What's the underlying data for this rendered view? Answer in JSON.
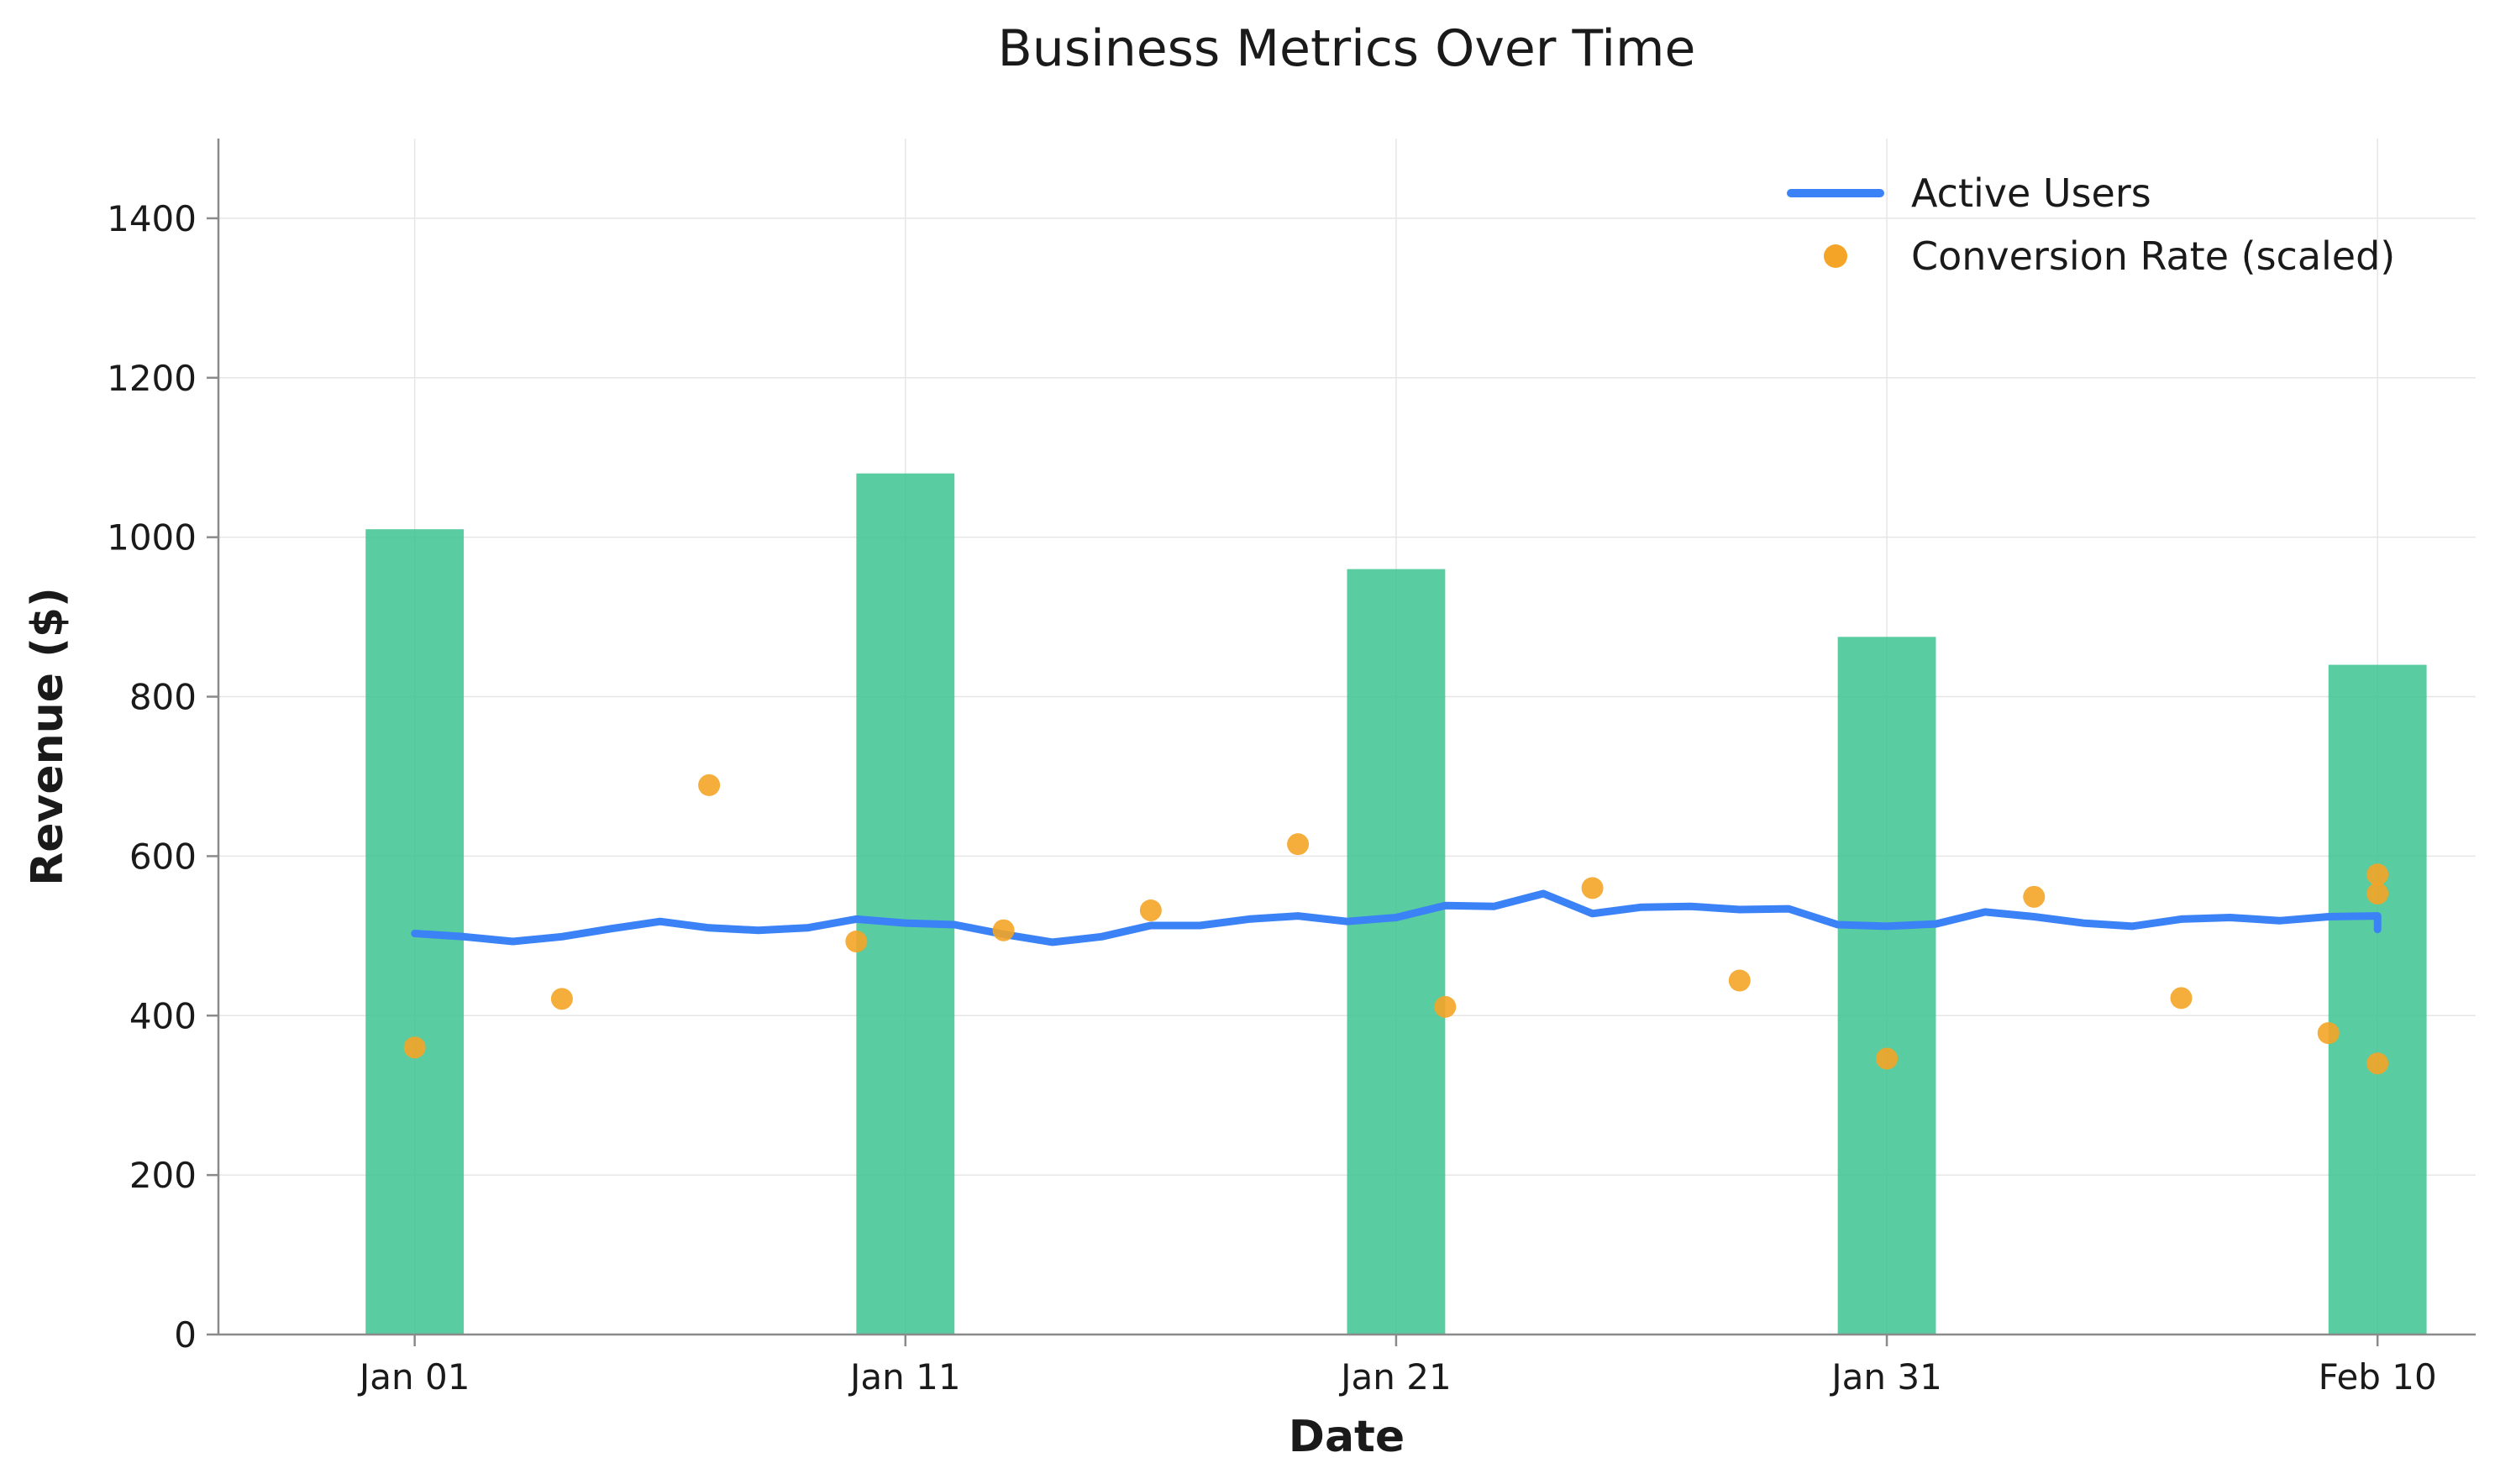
{
  "chart_data": {
    "type": "bar",
    "title": "Business Metrics Over Time",
    "xlabel": "Date",
    "ylabel": "Revenue ($)",
    "ylim": [
      0,
      1500
    ],
    "xlim": [
      "2024-12-28",
      "2025-02-12"
    ],
    "yticks": [
      0,
      200,
      400,
      600,
      800,
      1000,
      1200,
      1400
    ],
    "xticks": [
      {
        "date": "2025-01-01",
        "label": "Jan 01"
      },
      {
        "date": "2025-01-11",
        "label": "Jan 11"
      },
      {
        "date": "2025-01-21",
        "label": "Jan 21"
      },
      {
        "date": "2025-01-31",
        "label": "Jan 31"
      },
      {
        "date": "2025-02-10",
        "label": "Feb 10"
      }
    ],
    "grid": true,
    "legend_position": "upper right",
    "colors": {
      "bars": "#3cc391",
      "line": "#3b82f6",
      "scatter": "#f4a426"
    },
    "bars": {
      "dates": [
        "2025-01-01",
        "2025-01-11",
        "2025-01-21",
        "2025-01-31",
        "2025-02-10"
      ],
      "values": [
        1010,
        1080,
        960,
        875,
        840
      ]
    },
    "series": [
      {
        "name": "Active Users",
        "type": "line",
        "x": [
          "2025-01-01",
          "2025-01-02",
          "2025-01-03",
          "2025-01-04",
          "2025-01-05",
          "2025-01-06",
          "2025-01-07",
          "2025-01-08",
          "2025-01-09",
          "2025-01-10",
          "2025-01-11",
          "2025-01-12",
          "2025-01-13",
          "2025-01-14",
          "2025-01-15",
          "2025-01-16",
          "2025-01-17",
          "2025-01-18",
          "2025-01-19",
          "2025-01-20",
          "2025-01-21",
          "2025-01-22",
          "2025-01-23",
          "2025-01-24",
          "2025-01-25",
          "2025-01-26",
          "2025-01-27",
          "2025-01-28",
          "2025-01-29",
          "2025-01-30",
          "2025-01-31",
          "2025-02-01",
          "2025-02-02",
          "2025-02-03",
          "2025-02-04",
          "2025-02-05",
          "2025-02-06",
          "2025-02-07",
          "2025-02-08",
          "2025-02-09",
          "2025-02-10",
          "2025-02-10"
        ],
        "y": [
          503,
          499,
          493,
          499,
          509,
          518,
          510,
          507,
          510,
          521,
          516,
          514,
          502,
          492,
          499,
          513,
          513,
          521,
          525,
          518,
          523,
          538,
          537,
          553,
          528,
          536,
          537,
          533,
          534,
          514,
          512,
          515,
          530,
          524,
          516,
          512,
          521,
          523,
          519,
          524,
          525,
          508
        ]
      },
      {
        "name": "Conversion Rate (scaled)",
        "type": "scatter",
        "x": [
          "2025-01-01",
          "2025-01-04",
          "2025-01-07",
          "2025-01-10",
          "2025-01-13",
          "2025-01-16",
          "2025-01-19",
          "2025-01-22",
          "2025-01-25",
          "2025-01-28",
          "2025-01-31",
          "2025-02-03",
          "2025-02-06",
          "2025-02-09",
          "2025-02-10",
          "2025-02-10",
          "2025-02-10"
        ],
        "y": [
          360,
          421,
          689,
          493,
          507,
          532,
          615,
          411,
          560,
          444,
          346,
          549,
          422,
          378,
          340,
          553,
          577
        ]
      }
    ]
  }
}
